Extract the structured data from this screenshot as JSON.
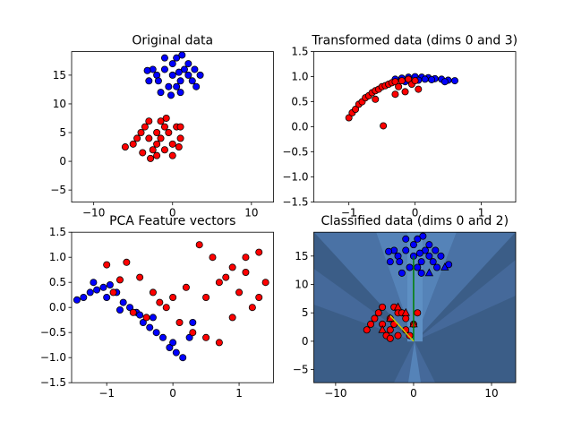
{
  "chart_data": [
    {
      "type": "scatter",
      "title": "Original data",
      "xlim": [
        -12.8,
        12.8
      ],
      "xticks": [
        {
          "value": -10,
          "label": "−10"
        },
        0,
        10
      ],
      "ylim": [
        -7.1,
        19.1
      ],
      "yticks": [
        {
          "value": -5,
          "label": "−5"
        },
        0,
        5,
        10,
        15
      ],
      "series": [
        {
          "color": "#0000ff",
          "marker": "circle",
          "x": [
            -2,
            -1,
            0,
            1,
            2,
            3,
            -3,
            -1.5,
            0.5,
            1.5,
            2.5,
            -0.5,
            0,
            1,
            -2.5,
            3.5,
            2,
            -1,
            0.5,
            -1.8,
            1.2,
            2.8,
            -0.2,
            0.8,
            -3.2
          ],
          "values": [
            15,
            16,
            17,
            14,
            15,
            13,
            14,
            12,
            18,
            16,
            14,
            13,
            15,
            12,
            16,
            15,
            17,
            18,
            13,
            14,
            18.5,
            16,
            11.5,
            15.5,
            15.8
          ]
        },
        {
          "color": "#ff0000",
          "marker": "circle",
          "x": [
            -3,
            -2,
            -1,
            0,
            1,
            -4,
            -5,
            -2.5,
            -1.5,
            0.5,
            -3.5,
            -2,
            -1,
            -0.5,
            -4.5,
            -3,
            -2,
            0,
            1,
            -1.5,
            -6,
            -2.8,
            -0.8,
            0.8,
            -3.8
          ],
          "values": [
            4,
            5,
            6,
            3,
            4,
            5,
            3,
            2,
            7,
            6,
            6,
            1,
            2,
            5,
            4,
            7,
            3,
            1,
            6,
            4,
            2.5,
            0.5,
            7.5,
            2.5,
            1.5
          ]
        }
      ]
    },
    {
      "type": "scatter",
      "title": "Transformed data (dims 0 and 3)",
      "xlim": [
        -1.53,
        1.52
      ],
      "xticks": [
        {
          "value": -1,
          "label": "−1"
        },
        0,
        1
      ],
      "ylim": [
        -1.5,
        1.5
      ],
      "yticks": [
        {
          "value": -1.5,
          "label": "−1.5"
        },
        {
          "value": -1,
          "label": "−1.0"
        },
        {
          "value": -0.5,
          "label": "−0.5"
        },
        {
          "value": 0,
          "label": "0.0"
        },
        0.5,
        {
          "value": 1,
          "label": "1.0"
        },
        1.5
      ],
      "series": [
        {
          "color": "#0000ff",
          "marker": "circle",
          "x": [
            -0.3,
            -0.2,
            -0.1,
            0,
            0.1,
            0.2,
            0.3,
            0.4,
            0.5,
            0.6,
            -0.15,
            0.05,
            0.25,
            0.45,
            0.15
          ],
          "values": [
            0.95,
            0.97,
            0.99,
            1.0,
            0.99,
            0.98,
            0.96,
            0.95,
            0.93,
            0.92,
            0.9,
            0.93,
            0.94,
            0.9,
            0.95
          ]
        },
        {
          "color": "#ff0000",
          "marker": "circle",
          "x": [
            -1.0,
            -0.95,
            -0.9,
            -0.85,
            -0.8,
            -0.75,
            -0.7,
            -0.65,
            -0.6,
            -0.55,
            -0.5,
            -0.45,
            -0.4,
            -0.35,
            -0.3,
            -0.25,
            -0.2,
            -0.15,
            -0.1,
            -0.05,
            0.0,
            0.05,
            -0.6,
            -0.3,
            -0.48
          ],
          "values": [
            0.18,
            0.28,
            0.35,
            0.45,
            0.5,
            0.58,
            0.62,
            0.68,
            0.72,
            0.75,
            0.8,
            0.82,
            0.85,
            0.88,
            0.9,
            0.8,
            0.92,
            0.7,
            0.95,
            0.85,
            0.92,
            0.75,
            0.55,
            0.65,
            0.02
          ]
        }
      ]
    },
    {
      "type": "scatter",
      "title": "PCA Feature vectors",
      "xlim": [
        -1.53,
        1.52
      ],
      "xticks": [
        {
          "value": -1,
          "label": "−1"
        },
        0,
        1
      ],
      "ylim": [
        -1.5,
        1.5
      ],
      "yticks": [
        {
          "value": -1.5,
          "label": "−1.5"
        },
        {
          "value": -1,
          "label": "−1.0"
        },
        {
          "value": -0.5,
          "label": "−0.5"
        },
        {
          "value": 0,
          "label": "0.0"
        },
        0.5,
        {
          "value": 1,
          "label": "1.0"
        },
        1.5
      ],
      "series": [
        {
          "color": "#0000ff",
          "marker": "circle",
          "x": [
            -1.45,
            -1.35,
            -1.25,
            -1.15,
            -1.05,
            -0.95,
            -0.85,
            -0.75,
            -0.65,
            -0.55,
            -0.45,
            -0.35,
            -0.25,
            -0.15,
            -0.05,
            0.05,
            0.15,
            0.25,
            -1.2,
            -1.0,
            -0.8,
            -0.5,
            0.0,
            0.3,
            -0.3
          ],
          "values": [
            0.15,
            0.2,
            0.3,
            0.35,
            0.4,
            0.45,
            0.3,
            0.1,
            0.0,
            -0.1,
            -0.3,
            -0.4,
            -0.5,
            -0.6,
            -0.8,
            -0.9,
            -1.0,
            -0.6,
            0.5,
            0.2,
            -0.05,
            -0.15,
            -0.7,
            -0.3,
            -0.2
          ]
        },
        {
          "color": "#ff0000",
          "marker": "circle",
          "x": [
            -1.0,
            -0.7,
            -0.5,
            -0.3,
            -0.1,
            0.1,
            0.3,
            0.5,
            0.7,
            0.9,
            1.1,
            1.3,
            -0.9,
            -0.6,
            -0.4,
            -0.2,
            0.2,
            0.4,
            0.6,
            0.8,
            1.0,
            1.2,
            1.4,
            0.5,
            0.9,
            1.1,
            -0.8,
            0.0,
            0.7,
            1.3
          ],
          "values": [
            0.85,
            0.9,
            0.6,
            0.3,
            0.0,
            -0.3,
            -0.5,
            0.2,
            0.5,
            0.8,
            1.0,
            1.1,
            0.3,
            -0.1,
            -0.2,
            0.1,
            0.4,
            1.25,
            1.0,
            0.6,
            0.3,
            0.0,
            0.5,
            -0.6,
            -0.2,
            0.7,
            0.55,
            0.2,
            -0.7,
            0.2
          ]
        }
      ]
    },
    {
      "type": "scatter",
      "title": "Classified data (dims 0 and 2)",
      "xlim": [
        -12.8,
        13.1
      ],
      "xticks": [
        {
          "value": -10,
          "label": "−10"
        },
        0,
        10
      ],
      "ylim": [
        -7.3,
        19.2
      ],
      "yticks": [
        {
          "value": -5,
          "label": "−5"
        },
        0,
        5,
        10,
        15
      ],
      "series": [
        {
          "color": "#0000ff",
          "marker": "circle",
          "x": [
            -2,
            -1,
            0,
            1,
            2,
            3,
            -3,
            -1.5,
            0.5,
            1.5,
            2.5,
            -0.5,
            0,
            1,
            -2.5,
            3.5,
            2,
            -1,
            0.5,
            -1.8,
            1.2,
            2.8,
            4.5,
            0.8,
            -3.2
          ],
          "values": [
            15,
            16,
            17,
            14,
            15,
            13,
            14,
            12,
            18,
            16,
            14,
            13,
            15,
            12,
            16,
            15,
            17,
            18,
            13,
            14,
            18.5,
            16,
            13.5,
            15.5,
            15.8
          ]
        },
        {
          "color": "#0000ff",
          "marker": "triangle",
          "x": [
            2,
            4
          ],
          "values": [
            12,
            13
          ]
        },
        {
          "color": "#ff0000",
          "marker": "circle",
          "x": [
            -4,
            -3,
            -2,
            -1,
            0,
            -5,
            -6,
            -3.5,
            -2.5,
            -1.5,
            -4.5,
            -3,
            -2,
            -1,
            -5.5,
            -4,
            -3,
            -0.5,
            0.5,
            -2.5
          ],
          "values": [
            3,
            4,
            5,
            2,
            3,
            4,
            2,
            1,
            6,
            5,
            5,
            0.5,
            1,
            4,
            3,
            6,
            2,
            1,
            5,
            3
          ]
        },
        {
          "color": "#ff0000",
          "marker": "triangle",
          "x": [
            -3,
            -1,
            0,
            -2,
            -4
          ],
          "values": [
            4,
            5,
            3,
            6,
            2
          ]
        },
        {
          "type": "line",
          "color": "#008000",
          "x": [
            0,
            0
          ],
          "values": [
            0,
            15
          ]
        },
        {
          "type": "line",
          "color": "#cccc00",
          "x": [
            0,
            -3
          ],
          "values": [
            0,
            4.5
          ]
        }
      ]
    }
  ]
}
